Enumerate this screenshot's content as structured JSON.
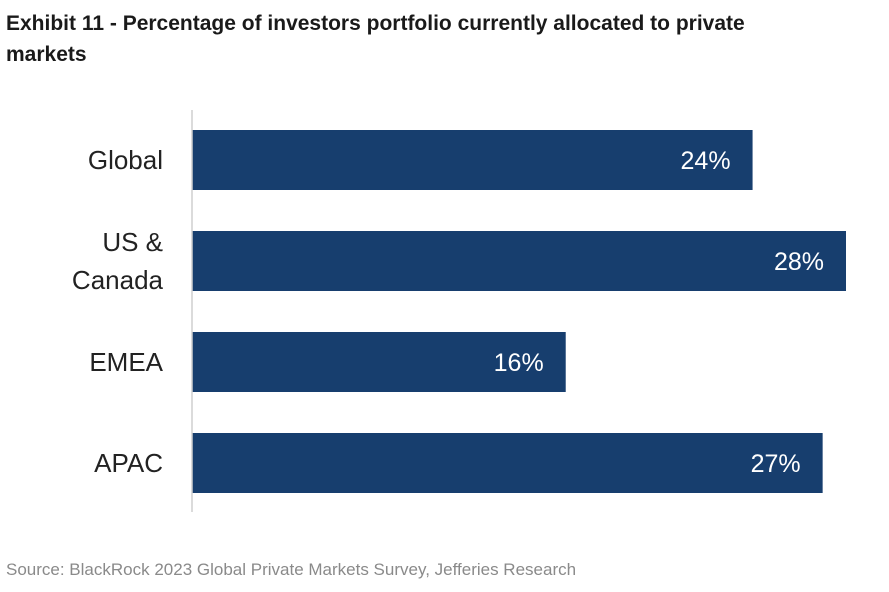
{
  "header": {
    "title_line1": "Exhibit 11 - Percentage of investors portfolio currently allocated to private",
    "title_line2": "markets"
  },
  "footer": {
    "source": "Source: BlackRock 2023 Global Private Markets Survey, Jefferies Research"
  },
  "colors": {
    "bar": "#173e6e",
    "bar_label": "#ffffff",
    "category_label": "#222222",
    "axis": "#cfcfcf"
  },
  "chart_data": {
    "type": "bar",
    "orientation": "horizontal",
    "categories": [
      [
        "Global"
      ],
      [
        "US &",
        "Canada"
      ],
      [
        "EMEA"
      ],
      [
        "APAC"
      ]
    ],
    "values": [
      24,
      28,
      16,
      27
    ],
    "data_labels": [
      "24%",
      "28%",
      "16%",
      "27%"
    ],
    "unit": "%",
    "xlim": [
      0,
      28
    ],
    "grid": false,
    "legend": "none"
  }
}
